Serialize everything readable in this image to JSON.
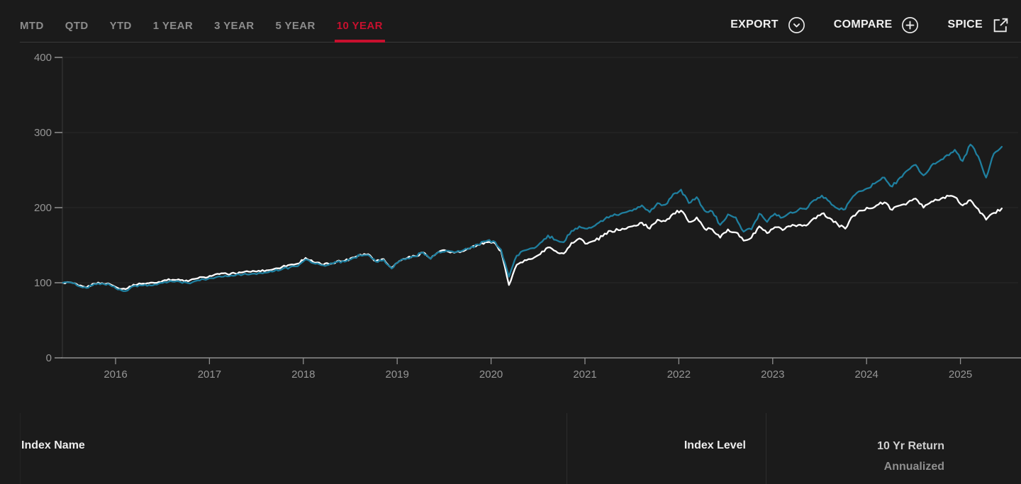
{
  "header": {
    "tabs": [
      {
        "label": "MTD",
        "active": false
      },
      {
        "label": "QTD",
        "active": false
      },
      {
        "label": "YTD",
        "active": false
      },
      {
        "label": "1 YEAR",
        "active": false
      },
      {
        "label": "3 YEAR",
        "active": false
      },
      {
        "label": "5 YEAR",
        "active": false
      },
      {
        "label": "10 YEAR",
        "active": true
      }
    ],
    "actions": [
      {
        "label": "EXPORT",
        "icon": "chevron-down-circle-icon"
      },
      {
        "label": "COMPARE",
        "icon": "plus-circle-icon"
      },
      {
        "label": "SPICE",
        "icon": "external-link-icon"
      }
    ]
  },
  "chart_data": {
    "type": "line",
    "title": "",
    "xlabel": "",
    "ylabel": "",
    "legend": "none",
    "grid": "horizontal",
    "x_axis": {
      "start": 2015.44,
      "step": 0.0833333,
      "unit": "year",
      "ticks": [
        2016,
        2017,
        2018,
        2019,
        2020,
        2021,
        2022,
        2023,
        2024,
        2025
      ]
    },
    "y_axis": {
      "ticks": [
        0,
        100,
        200,
        300,
        400
      ],
      "range": [
        0,
        400
      ]
    },
    "series": [
      {
        "name": "white",
        "color": "#ffffff",
        "values": [
          100,
          100.5,
          96,
          93.5,
          99,
          99.5,
          98,
          93,
          91.5,
          97.5,
          98.5,
          99.5,
          100,
          103.5,
          104,
          103.5,
          102,
          105.5,
          107.5,
          109,
          111.5,
          111.5,
          112.5,
          114,
          114.5,
          116,
          116.5,
          118.5,
          121,
          124,
          125.5,
          133,
          127.5,
          124.5,
          125,
          128.5,
          129,
          133.5,
          137.5,
          138,
          129,
          131.5,
          120,
          129,
          133,
          135.5,
          140.5,
          132,
          141,
          142.5,
          140,
          142,
          145.5,
          150.5,
          154,
          154,
          142,
          97,
          124,
          130,
          132,
          138,
          147,
          142,
          139,
          153,
          159,
          152,
          156,
          162,
          169,
          170,
          172,
          176,
          180,
          172,
          184,
          182,
          192,
          196,
          181,
          187,
          172,
          171,
          160,
          171,
          167,
          156,
          160,
          175,
          166,
          174,
          170,
          175,
          177,
          176,
          186,
          192,
          186,
          178,
          172,
          189,
          196,
          199,
          203,
          207,
          197,
          203,
          207,
          212,
          200,
          208,
          210,
          216,
          214,
          203,
          210,
          198,
          184,
          193,
          199
        ]
      },
      {
        "name": "teal",
        "color": "#1f7f9f",
        "values": [
          100,
          100.5,
          95.5,
          93,
          98.5,
          99,
          97,
          91,
          89,
          95.5,
          96.5,
          97,
          97.5,
          101,
          101.5,
          101,
          99.5,
          102.5,
          104.5,
          106,
          108.5,
          108.5,
          109.5,
          111,
          111.5,
          113,
          113.5,
          115.5,
          118,
          120.5,
          122,
          131,
          126,
          123.5,
          124,
          127.5,
          128,
          132.5,
          136.5,
          137,
          128,
          130.5,
          119,
          128.5,
          132.5,
          135,
          140.5,
          132,
          141,
          142.5,
          140.5,
          142.5,
          146,
          151,
          155,
          155.5,
          144,
          108,
          136,
          143,
          146,
          153,
          163,
          157,
          154,
          169,
          175,
          172,
          176,
          182,
          189,
          190,
          194,
          198,
          203,
          194,
          206,
          204,
          218,
          224,
          206,
          214,
          196,
          195,
          177,
          191,
          187,
          168,
          171,
          192,
          181,
          192,
          187,
          194,
          197,
          198,
          210,
          216,
          208,
          199,
          198,
          215,
          222,
          226,
          234,
          240,
          228,
          240,
          250,
          257,
          243,
          256,
          262,
          270,
          277,
          262,
          284,
          268,
          240,
          272,
          281
        ]
      }
    ]
  },
  "table": {
    "columns": [
      {
        "label": "Index Name",
        "align": "left"
      },
      {
        "label": "Index Level",
        "align": "right"
      },
      {
        "label": "10 Yr Return",
        "sublabel": "Annualized",
        "align": "right"
      }
    ]
  },
  "colors": {
    "background": "#1b1b1b",
    "accent_red": "#c8102e",
    "tab_inactive": "#8c8c8c",
    "axis_text": "#969696",
    "grid_line": "#282828",
    "topbar_divider": "#3a3a3a",
    "table_divider": "#2d2d2d",
    "series_white": "#ffffff",
    "series_teal": "#1f7f9f"
  }
}
